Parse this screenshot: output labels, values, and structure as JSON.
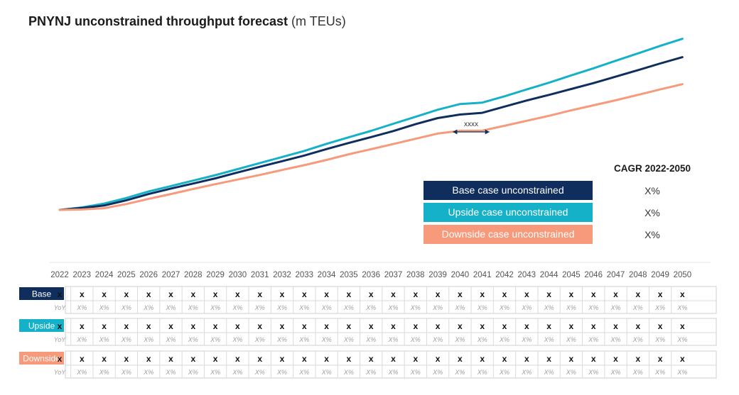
{
  "chart_data": {
    "type": "line",
    "title": "PNYNJ unconstrained throughput forecast",
    "unit": "(m TEUs)",
    "x": [
      2022,
      2023,
      2024,
      2025,
      2026,
      2027,
      2028,
      2029,
      2030,
      2031,
      2032,
      2033,
      2034,
      2035,
      2036,
      2037,
      2038,
      2039,
      2040,
      2041,
      2042,
      2043,
      2044,
      2045,
      2046,
      2047,
      2048,
      2049,
      2050
    ],
    "x_labels": [
      "2022",
      "2023",
      "2024",
      "2025",
      "2026",
      "2027",
      "2028",
      "2029",
      "2030",
      "2031",
      "2032",
      "2033",
      "2034",
      "2035",
      "2036",
      "2037",
      "2038",
      "2039",
      "2040",
      "2041",
      "2042",
      "2043",
      "2044",
      "2045",
      "2046",
      "2047",
      "2048",
      "2049",
      "2050"
    ],
    "ylim": [
      0,
      100
    ],
    "series": [
      {
        "key": "upside",
        "name": "Upside case unconstrained",
        "color": "#14b1c8",
        "cagr": "X%",
        "values": [
          20.0,
          21.2,
          23.0,
          25.7,
          28.8,
          31.4,
          34.0,
          36.6,
          39.5,
          42.4,
          45.3,
          48.2,
          51.6,
          54.7,
          57.8,
          61.2,
          64.5,
          67.9,
          70.6,
          71.3,
          74.3,
          77.6,
          80.8,
          84.3,
          87.7,
          91.3,
          94.8,
          98.4,
          101.8
        ]
      },
      {
        "key": "base",
        "name": "Base case unconstrained",
        "color": "#0f2e5d",
        "cagr": "X%",
        "values": [
          20.0,
          20.9,
          22.1,
          24.6,
          27.6,
          30.2,
          32.6,
          35.1,
          37.9,
          40.6,
          43.3,
          46.0,
          49.1,
          52.0,
          54.8,
          57.7,
          61.0,
          63.9,
          65.6,
          66.4,
          69.4,
          72.3,
          75.0,
          77.8,
          80.6,
          83.7,
          86.8,
          90.0,
          93.0
        ]
      },
      {
        "key": "downside",
        "name": "Downside case unconstrained",
        "color": "#f79a7b",
        "cagr": "X%",
        "values": [
          20.0,
          20.2,
          20.8,
          22.8,
          25.3,
          27.6,
          30.0,
          32.3,
          34.5,
          36.7,
          39.1,
          41.4,
          43.9,
          46.6,
          49.0,
          51.5,
          54.0,
          56.5,
          57.8,
          57.9,
          60.2,
          62.6,
          65.0,
          67.6,
          70.0,
          72.4,
          75.0,
          77.6,
          80.1
        ]
      }
    ],
    "legend": {
      "placement": "right",
      "header": "CAGR 2022-2050"
    },
    "annotation": {
      "label": "xxxx",
      "from_year": 2040,
      "to_year": 2041
    }
  },
  "table": {
    "rows": [
      {
        "key": "base",
        "label": "Base",
        "color": "#0f2e5d",
        "value": "x",
        "yoy_first": "YoY",
        "yoy": "X%"
      },
      {
        "key": "upside",
        "label": "Upside",
        "color": "#14b1c8",
        "value": "x",
        "yoy_first": "YoY",
        "yoy": "X%"
      },
      {
        "key": "downside",
        "label": "Downside",
        "color": "#f79a7b",
        "value": "x",
        "yoy_first": "YoY",
        "yoy": "X%"
      }
    ]
  }
}
